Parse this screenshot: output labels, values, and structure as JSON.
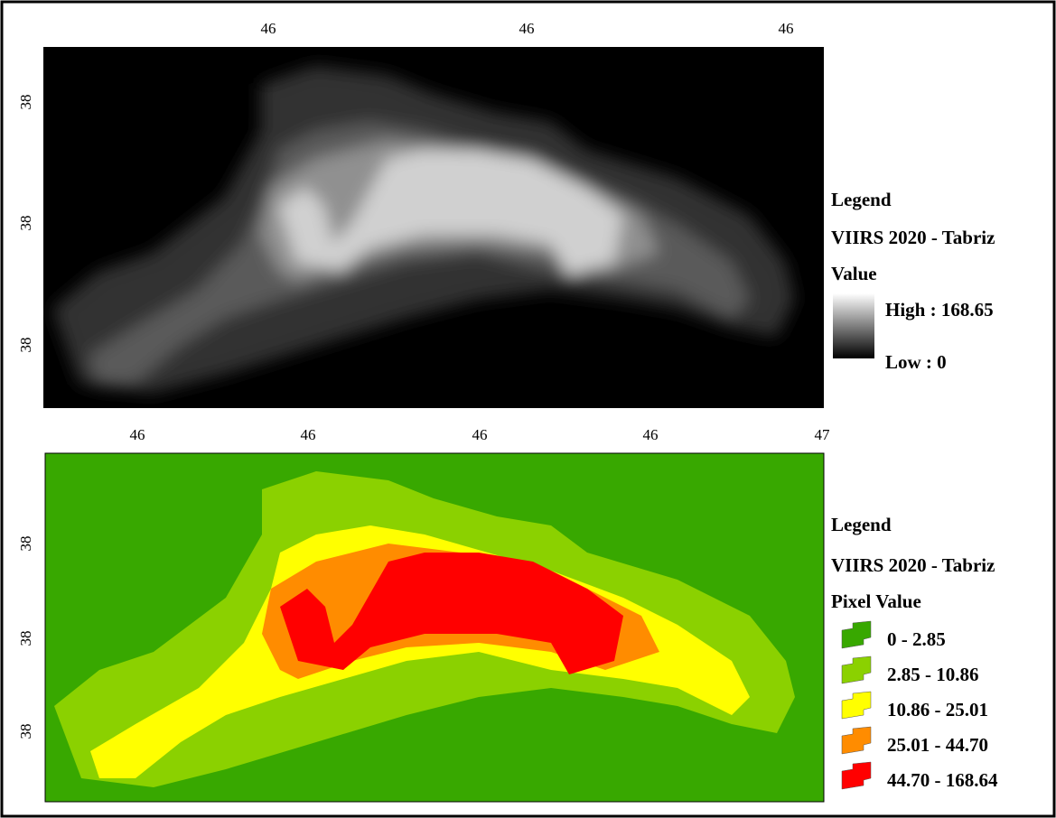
{
  "top_map": {
    "x_ticks": [
      "46",
      "46",
      "46"
    ],
    "y_ticks": [
      "38",
      "38",
      "38"
    ],
    "legend": {
      "title": "Legend",
      "layer": "VIIRS 2020 - Tabriz",
      "field": "Value",
      "high": "High : 168.65",
      "low": "Low : 0"
    }
  },
  "bottom_map": {
    "x_ticks": [
      "46",
      "46",
      "46",
      "46",
      "47"
    ],
    "y_ticks": [
      "38",
      "38",
      "38"
    ],
    "legend": {
      "title": "Legend",
      "layer": "VIIRS 2020 - Tabriz",
      "field": "Pixel Value",
      "classes": [
        {
          "label": "0 - 2.85",
          "color": "#38a800"
        },
        {
          "label": "2.85 - 10.86",
          "color": "#8bd100"
        },
        {
          "label": "10.86 - 25.01",
          "color": "#ffff00"
        },
        {
          "label": "25.01 - 44.70",
          "color": "#ff8c00"
        },
        {
          "label": "44.70 - 168.64",
          "color": "#ff0000"
        }
      ]
    }
  }
}
